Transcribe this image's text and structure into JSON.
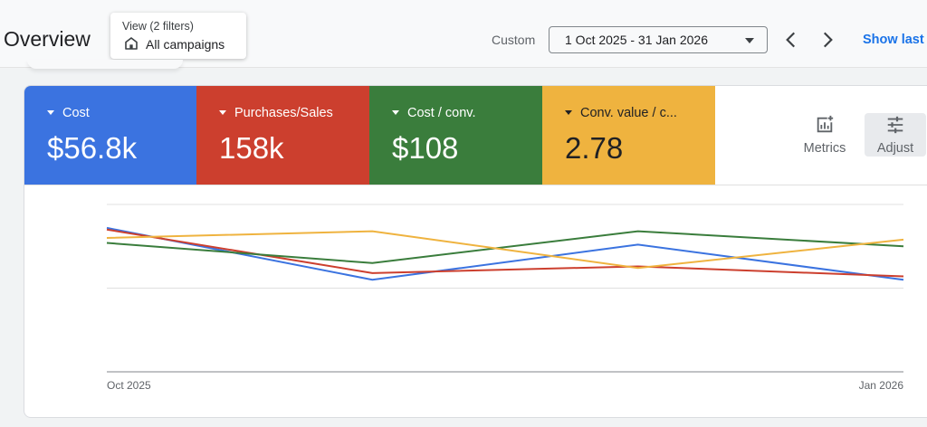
{
  "header": {
    "title": "Overview",
    "filter": {
      "label": "View (2 filters)",
      "value": "All campaigns",
      "icon": "home-icon"
    },
    "date_range": {
      "mode_label": "Custom",
      "value": "1 Oct 2025 - 31 Jan 2026"
    },
    "nav": {
      "prev_icon": "chevron-left-icon",
      "next_icon": "chevron-right-icon"
    },
    "show_last_label": "Show last"
  },
  "metrics": [
    {
      "label": "Cost",
      "value": "$56.8k",
      "color": "#3b73e0"
    },
    {
      "label": "Purchases/Sales",
      "value": "158k",
      "color": "#cc3f2e"
    },
    {
      "label": "Cost / conv.",
      "value": "$108",
      "color": "#3a7d3c"
    },
    {
      "label": "Conv. value / c...",
      "value": "2.78",
      "color": "#efb33f"
    }
  ],
  "tools": {
    "metrics_label": "Metrics",
    "metrics_icon": "add-chart-icon",
    "adjust_label": "Adjust",
    "adjust_icon": "sliders-icon"
  },
  "chart_data": {
    "type": "line",
    "x": [
      "Oct 2025",
      "Nov 2025",
      "Dec 2025",
      "Jan 2026"
    ],
    "x_tick_labels": [
      "Oct 2025",
      "Jan 2026"
    ],
    "ylim": [
      0,
      1
    ],
    "grid": true,
    "series": [
      {
        "name": "Cost",
        "color": "#3b73e0",
        "values": [
          0.86,
          0.55,
          0.76,
          0.55
        ]
      },
      {
        "name": "Purchases/Sales",
        "color": "#cc3f2e",
        "values": [
          0.85,
          0.59,
          0.63,
          0.57
        ]
      },
      {
        "name": "Cost / conv.",
        "color": "#3a7d3c",
        "values": [
          0.77,
          0.65,
          0.84,
          0.75
        ]
      },
      {
        "name": "Conv. value / c...",
        "color": "#efb33f",
        "values": [
          0.8,
          0.84,
          0.62,
          0.79
        ]
      }
    ]
  }
}
